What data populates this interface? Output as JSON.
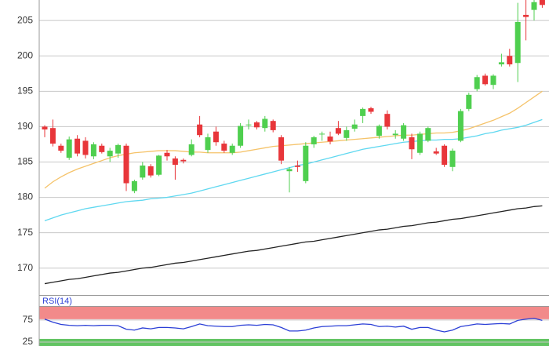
{
  "chart_data": [
    {
      "type": "candlestick",
      "up_color": "#4fcf4f",
      "down_color": "#e8363a",
      "ylim": [
        166.2,
        207.9
      ],
      "yticks": [
        170,
        175,
        180,
        185,
        190,
        195,
        200,
        205
      ],
      "grid": true,
      "open": [
        190,
        189.8,
        187.3,
        185.6,
        188.3,
        188,
        185.8,
        187.3,
        185.8,
        186.2,
        187.3,
        180.9,
        182.8,
        184.4,
        183.2,
        186.3,
        185.5,
        185.3,
        186,
        190.3,
        186.7,
        189.3,
        187.6,
        186.3,
        187.3,
        190.2,
        190.6,
        189.8,
        190.8,
        188.5,
        183.7,
        184.5,
        182.3,
        187.5,
        188.9,
        188.6,
        189.8,
        188.4,
        189.7,
        191.5,
        192.6,
        188.7,
        191.8,
        188.8,
        188.3,
        188.5,
        186.3,
        188,
        186.5,
        187.3,
        184.3,
        188,
        192.5,
        195.3,
        197.2,
        195.9,
        198.8,
        200,
        199,
        205.8,
        206.5,
        208
      ],
      "high": [
        190.2,
        191,
        187.6,
        188.6,
        188.8,
        188.5,
        187.8,
        187.6,
        187,
        187.6,
        187.6,
        182.5,
        185,
        184.7,
        186,
        186.7,
        185.8,
        185.5,
        188.2,
        191.5,
        189,
        190,
        188,
        187.6,
        190.5,
        191,
        190.8,
        191.5,
        191,
        188.8,
        184.3,
        185.2,
        187.8,
        188.7,
        189.3,
        189.3,
        190.8,
        190,
        191,
        192.7,
        192.8,
        190.3,
        192.3,
        189.5,
        190.5,
        189,
        189.3,
        190,
        187,
        187.5,
        186.9,
        192.5,
        194.8,
        197.3,
        197.5,
        197.4,
        200.3,
        201,
        207.5,
        207.9,
        207.9,
        208.2
      ],
      "low": [
        188.5,
        187.2,
        186.3,
        185.3,
        185.8,
        185.5,
        185.4,
        186.2,
        185,
        185.6,
        180.9,
        180.6,
        182.5,
        182.8,
        183,
        185.2,
        182.5,
        184.8,
        185.8,
        188.5,
        186.3,
        187.3,
        186.3,
        186,
        187,
        189.6,
        189.6,
        189.3,
        189.2,
        184.7,
        180.7,
        183.6,
        182,
        187,
        188,
        187.5,
        188.8,
        188,
        189.3,
        190.5,
        191.8,
        188.3,
        189.6,
        188.3,
        188,
        185.4,
        186,
        187.8,
        186,
        184.3,
        183.7,
        187.8,
        192.2,
        195,
        195.8,
        195.3,
        198.5,
        198.5,
        196.3,
        202.2,
        205,
        206.8
      ],
      "close": [
        189.6,
        187.6,
        186.6,
        188.2,
        186.2,
        186,
        187.5,
        186.4,
        186.6,
        187.4,
        182,
        182.3,
        184.5,
        183.1,
        185.9,
        185.8,
        184.6,
        185.1,
        187.5,
        188.8,
        188.5,
        187.8,
        186.6,
        187.3,
        190.1,
        190.3,
        189.9,
        191.1,
        189.5,
        185.2,
        184,
        184.3,
        187.3,
        188.5,
        189,
        187.9,
        189,
        189.5,
        190.3,
        192.5,
        192.1,
        190.1,
        190,
        189,
        190.2,
        186.8,
        189,
        189.8,
        186.2,
        184.6,
        186.6,
        192.2,
        194.5,
        197,
        196,
        197.2,
        199.1,
        198.8,
        204.8,
        205.5,
        207.6,
        207.2
      ],
      "lines": [
        {
          "color": "#f5c36a",
          "values": [
            181.3,
            182.2,
            182.9,
            183.5,
            184,
            184.4,
            184.8,
            185.2,
            185.6,
            185.9,
            186.1,
            186.3,
            186.4,
            186.5,
            186.6,
            186.6,
            186.6,
            186.5,
            186.4,
            186.4,
            186.3,
            186.3,
            186.3,
            186.3,
            186.4,
            186.6,
            186.8,
            187.0,
            187.2,
            187.3,
            187.4,
            187.5,
            187.6,
            187.7,
            187.8,
            187.9,
            188.0,
            188.1,
            188.2,
            188.3,
            188.4,
            188.5,
            188.6,
            188.7,
            188.8,
            188.8,
            188.9,
            189.0,
            189.1,
            189.1,
            189.2,
            189.4,
            189.7,
            190.1,
            190.5,
            190.9,
            191.4,
            191.9,
            192.6,
            193.4,
            194.2,
            195.0
          ]
        },
        {
          "color": "#5fd8f0",
          "values": [
            176.7,
            177.1,
            177.5,
            177.8,
            178.1,
            178.4,
            178.6,
            178.8,
            179.0,
            179.2,
            179.4,
            179.5,
            179.6,
            179.8,
            179.9,
            180.0,
            180.2,
            180.4,
            180.6,
            180.9,
            181.2,
            181.5,
            181.8,
            182.1,
            182.4,
            182.7,
            183.0,
            183.3,
            183.6,
            183.9,
            184.2,
            184.5,
            184.7,
            185.0,
            185.3,
            185.6,
            185.9,
            186.2,
            186.5,
            186.8,
            187.0,
            187.2,
            187.4,
            187.6,
            187.8,
            187.9,
            188.0,
            188.1,
            188.1,
            188.2,
            188.2,
            188.3,
            188.5,
            188.7,
            189.0,
            189.2,
            189.5,
            189.7,
            189.9,
            190.2,
            190.6,
            191.0
          ]
        },
        {
          "color": "#222222",
          "values": [
            167.8,
            168.0,
            168.2,
            168.4,
            168.5,
            168.7,
            168.9,
            169.1,
            169.3,
            169.4,
            169.6,
            169.8,
            170.0,
            170.1,
            170.3,
            170.5,
            170.7,
            170.8,
            171.0,
            171.2,
            171.4,
            171.6,
            171.8,
            172.0,
            172.2,
            172.4,
            172.5,
            172.7,
            172.9,
            173.1,
            173.3,
            173.5,
            173.7,
            173.8,
            174.0,
            174.2,
            174.4,
            174.6,
            174.8,
            175.0,
            175.2,
            175.4,
            175.5,
            175.7,
            175.9,
            176.0,
            176.2,
            176.4,
            176.5,
            176.7,
            176.9,
            177.0,
            177.2,
            177.4,
            177.6,
            177.8,
            178.0,
            178.2,
            178.4,
            178.5,
            178.7,
            178.8
          ]
        }
      ]
    },
    {
      "type": "line",
      "title": "RSI(14)",
      "color": "#2b3fd6",
      "ylim": [
        16,
        105
      ],
      "yticks": [
        25,
        75
      ],
      "upper_band": {
        "value": 75,
        "color": "#f28a8a"
      },
      "lower_band": {
        "value": 25,
        "color": "#62c462"
      },
      "values": [
        77,
        70,
        65,
        63,
        62,
        63,
        62,
        63,
        63,
        62,
        54,
        52,
        57,
        55,
        58,
        58,
        57,
        55,
        60,
        66,
        62,
        61,
        60,
        60,
        63,
        64,
        63,
        65,
        64,
        58,
        50,
        50,
        52,
        57,
        60,
        61,
        62,
        62,
        64,
        66,
        65,
        60,
        61,
        59,
        61,
        54,
        58,
        58,
        52,
        48,
        52,
        60,
        63,
        66,
        65,
        66,
        67,
        66,
        74,
        77,
        79,
        74
      ]
    }
  ]
}
